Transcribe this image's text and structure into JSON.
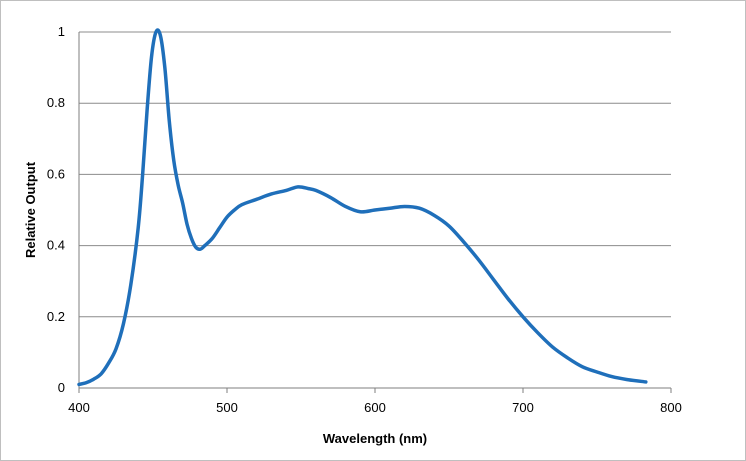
{
  "chart_data": {
    "type": "line",
    "title": "",
    "xlabel": "Wavelength (nm)",
    "ylabel": "Relative Output",
    "xlim": [
      400,
      800
    ],
    "ylim": [
      0,
      1
    ],
    "grid": "horizontal",
    "legend": "none",
    "x_ticks": [
      "400",
      "500",
      "600",
      "700",
      "800"
    ],
    "y_ticks": [
      "0",
      "0.2",
      "0.4",
      "0.6",
      "0.8",
      "1"
    ],
    "colors": {
      "line": "#1f6fba",
      "grid": "#8c8c8c",
      "axis": "#7f7f7f"
    },
    "series": [
      {
        "x": [
          400,
          405,
          410,
          415,
          420,
          425,
          430,
          435,
          440,
          443,
          446,
          449,
          452,
          455,
          458,
          461,
          464,
          467,
          470,
          473,
          476,
          479,
          482,
          485,
          490,
          495,
          500,
          505,
          510,
          520,
          530,
          540,
          548,
          555,
          560,
          570,
          580,
          590,
          600,
          610,
          620,
          630,
          640,
          650,
          660,
          670,
          680,
          690,
          700,
          710,
          720,
          730,
          740,
          750,
          760,
          770,
          783
        ],
        "y": [
          0.01,
          0.015,
          0.025,
          0.04,
          0.07,
          0.11,
          0.18,
          0.29,
          0.45,
          0.6,
          0.78,
          0.93,
          1.0,
          0.99,
          0.9,
          0.75,
          0.64,
          0.57,
          0.52,
          0.46,
          0.42,
          0.395,
          0.39,
          0.4,
          0.42,
          0.45,
          0.48,
          0.5,
          0.515,
          0.53,
          0.545,
          0.555,
          0.565,
          0.56,
          0.555,
          0.535,
          0.51,
          0.495,
          0.5,
          0.505,
          0.51,
          0.505,
          0.485,
          0.455,
          0.41,
          0.36,
          0.305,
          0.25,
          0.2,
          0.155,
          0.115,
          0.085,
          0.06,
          0.045,
          0.032,
          0.024,
          0.017
        ]
      }
    ]
  }
}
